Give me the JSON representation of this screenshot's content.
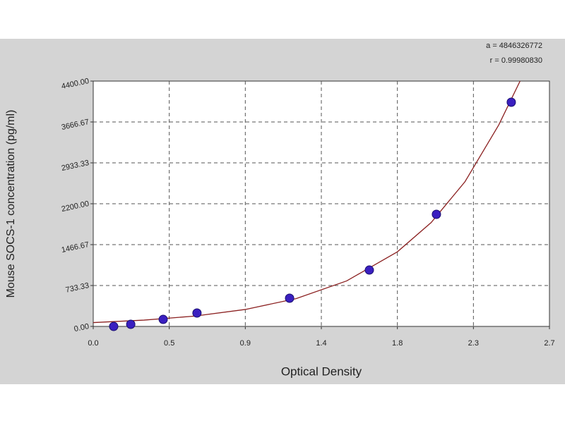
{
  "chart_data": {
    "type": "scatter",
    "x_label": "Optical Density",
    "y_label": "Mouse SOCS-1 concentration (pg/ml)",
    "annotations": [
      "a = 4846326772",
      "r = 0.99980830"
    ],
    "x": [
      0.121,
      0.222,
      0.414,
      0.614,
      1.162,
      1.634,
      2.031,
      2.474
    ],
    "values": [
      0,
      38,
      126,
      240,
      506,
      1011,
      2010,
      4021
    ],
    "color": "#3a1fc0",
    "curve": {
      "color": "#8b2020",
      "x": [
        0,
        0.3,
        0.6,
        0.9,
        1.2,
        1.5,
        1.8,
        2.0,
        2.2,
        2.4,
        2.526
      ],
      "y": [
        69,
        113,
        185,
        304,
        498,
        816,
        1338,
        1863,
        2595,
        3614,
        4400
      ]
    },
    "xlim": [
      0,
      2.7
    ],
    "xticks": [
      {
        "value": 0,
        "label": "0.0"
      },
      {
        "value": 0.45,
        "label": "0.5"
      },
      0.9,
      {
        "value": 1.35,
        "label": "1.4"
      },
      1.8,
      {
        "value": 2.25,
        "label": "2.3"
      },
      2.7
    ],
    "ylim": [
      0,
      4400
    ],
    "yticks": [
      {
        "value": 0,
        "label": "0.00"
      },
      733.33,
      1466.67,
      {
        "value": 2200,
        "label": "2200.00"
      },
      2933.33,
      3666.67,
      {
        "value": 4400,
        "label": "4400.00"
      }
    ],
    "grid": true
  }
}
